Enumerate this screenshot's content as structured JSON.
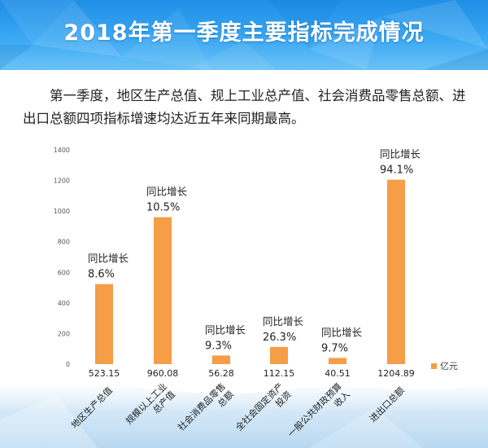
{
  "header": {
    "title": "2018年第一季度主要指标完成情况"
  },
  "intro": {
    "text": "第一季度，地区生产总值、规上工业总产值、社会消费品零售总额、进出口总额四项指标增速均达近五年来同期最高。"
  },
  "colors": {
    "banner_blue": "#2d9bee",
    "bar_orange": "#f59d47",
    "background": "#ffffff"
  },
  "chart_data": {
    "type": "bar",
    "ylim": [
      0,
      1400
    ],
    "yticks": [
      0,
      200,
      400,
      600,
      800,
      1000,
      1200,
      1400
    ],
    "grid": false,
    "legend": {
      "label": "亿元",
      "position": "bottom-right"
    },
    "annotation_prefix": "同比增长",
    "categories": [
      {
        "lines": [
          "地区生产总值"
        ]
      },
      {
        "lines": [
          "规模以上工业",
          "总产值"
        ]
      },
      {
        "lines": [
          "社会消费品零售",
          "总额"
        ]
      },
      {
        "lines": [
          "全社会固定资产",
          "投资"
        ]
      },
      {
        "lines": [
          "一般公共财政预算",
          "收入"
        ]
      },
      {
        "lines": [
          "进出口总额"
        ]
      }
    ],
    "values": [
      523.15,
      960.08,
      56.28,
      112.15,
      40.51,
      1204.89
    ],
    "value_labels": [
      "523.15",
      "960.08",
      "56.28",
      "112.15",
      "40.51",
      "1204.89"
    ],
    "growth_labels": [
      "8.6%",
      "10.5%",
      "9.3%",
      "26.3%",
      "9.7%",
      "94.1%"
    ]
  }
}
